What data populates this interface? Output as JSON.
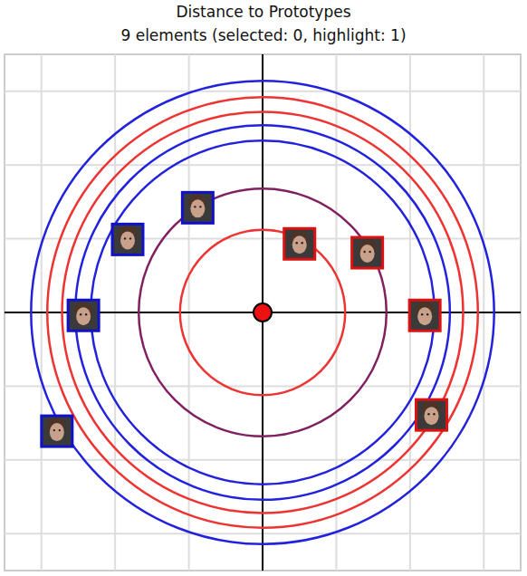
{
  "chart_data": {
    "type": "radial",
    "title": "Distance to Prototypes",
    "subtitle": "9 elements (selected: 0, highlight: 1)",
    "xlim": [
      -3.5,
      3.5
    ],
    "ylim": [
      -3.5,
      3.5
    ],
    "xticks": [
      -3,
      -2,
      -1,
      0,
      1,
      2,
      3
    ],
    "yticks": [
      -3,
      -2,
      -1,
      0,
      1,
      2,
      3
    ],
    "grid": true,
    "tick_labels": false,
    "center": {
      "x": 0,
      "y": 0,
      "color": "#ee1111"
    },
    "rings": {
      "radii": [
        3.14,
        2.92,
        2.72,
        2.54,
        2.33,
        1.68,
        1.12
      ],
      "colors": [
        "#2222dd",
        "#ee3333",
        "#ee3333",
        "#2222dd",
        "#2222dd",
        "#802060",
        "#ee3333"
      ]
    },
    "x": [
      0.5,
      1.42,
      2.2,
      2.29,
      -0.88,
      -1.83,
      -2.43,
      -2.79
    ],
    "y": [
      0.93,
      0.81,
      -0.04,
      -1.39,
      1.42,
      0.99,
      -0.04,
      -1.61
    ],
    "colors": [
      "#dd1111",
      "#dd1111",
      "#dd1111",
      "#dd1111",
      "#1111cc",
      "#1111cc",
      "#1111cc",
      "#1111cc"
    ],
    "marker": "thumbnail"
  }
}
